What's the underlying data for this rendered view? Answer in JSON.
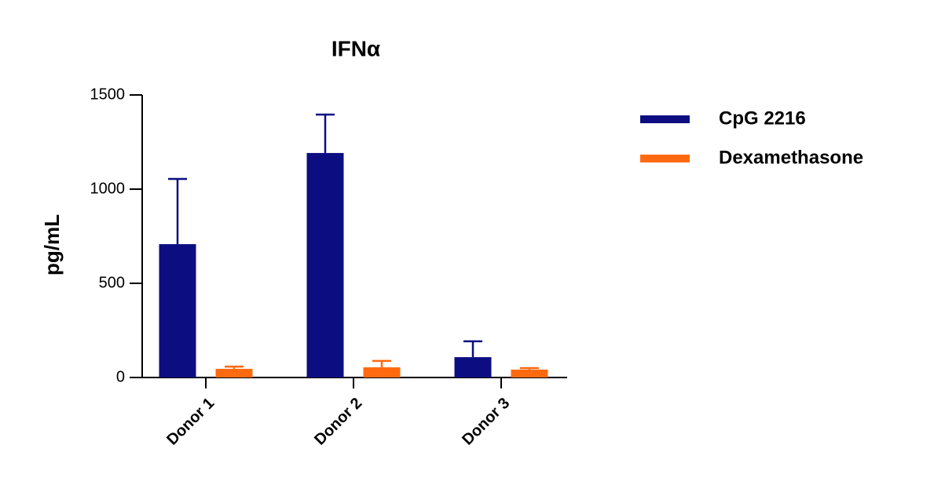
{
  "chart_data": {
    "type": "bar",
    "title": "IFNα",
    "y_label": "pg/mL",
    "categories": [
      "Donor 1",
      "Donor 2",
      "Donor 3"
    ],
    "series": [
      {
        "name": "CpG 2216",
        "color": "#0d0d82",
        "values": [
          708,
          1192,
          108
        ],
        "errors": [
          346,
          204,
          84
        ]
      },
      {
        "name": "Dexamethasone",
        "color": "#ff6a10",
        "values": [
          46,
          54,
          42
        ],
        "errors": [
          12,
          34,
          8
        ]
      }
    ],
    "ylim": [
      0,
      1500
    ],
    "yticks": [
      0,
      500,
      1000,
      1500
    ],
    "grid": false,
    "legend": "right"
  }
}
